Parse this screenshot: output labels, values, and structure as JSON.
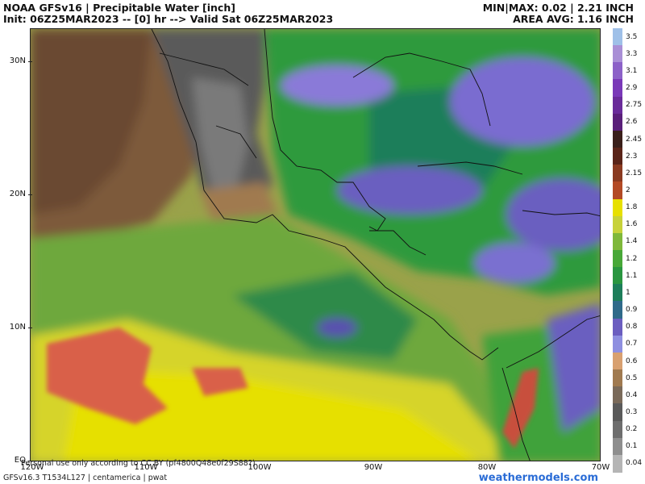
{
  "header": {
    "title": "NOAA GFSv16 | Precipitable Water [inch]",
    "init_line": "Init: 06Z25MAR2023 -- [0] hr --> Valid Sat 06Z25MAR2023",
    "minmax": "MIN|MAX: 0.02 | 2.21 INCH",
    "area_avg": "AREA AVG: 1.16 INCH"
  },
  "map": {
    "lat_labels": [
      "30N",
      "20N",
      "10N",
      "EQ"
    ],
    "lon_labels": [
      "120W",
      "110W",
      "100W",
      "90W",
      "80W",
      "70W"
    ],
    "region": "centamerica"
  },
  "colorbar": {
    "levels": [
      "3.5",
      "3.3",
      "3.1",
      "2.9",
      "2.75",
      "2.6",
      "2.45",
      "2.3",
      "2.15",
      "2",
      "1.8",
      "1.6",
      "1.4",
      "1.2",
      "1.1",
      "1",
      "0.9",
      "0.8",
      "0.7",
      "0.6",
      "0.5",
      "0.4",
      "0.3",
      "0.2",
      "0.1",
      "0.04"
    ],
    "colors": [
      "#9fc0e8",
      "#a98fd6",
      "#8c61c8",
      "#7a39b8",
      "#6a2b9a",
      "#5a1f7a",
      "#3a1f1a",
      "#5a2418",
      "#8a3a20",
      "#b34a25",
      "#e7e000",
      "#c7d23a",
      "#7fb83a",
      "#48a838",
      "#2a9640",
      "#1d7e5a",
      "#2f6a8a",
      "#6b5ec0",
      "#8e8fe0",
      "#d8a070",
      "#a07a50",
      "#7a6a5a",
      "#5a5a5a",
      "#6e6e6e",
      "#8e8e8e",
      "#b5b5b5"
    ]
  },
  "footer": {
    "disclaimer": "Personal use only according to CC BY (pf4800Q48e0f29S88?)",
    "meta": "GFSv16.3 T1534L127 | centamerica | pwat",
    "brand": "weathermodels.com"
  }
}
